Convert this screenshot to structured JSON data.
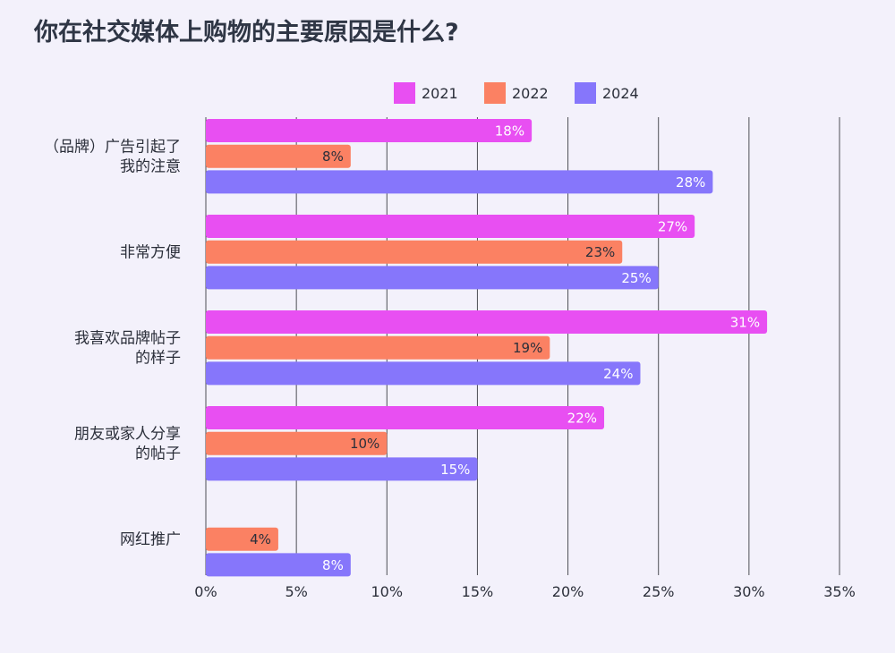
{
  "chart_data": {
    "type": "bar",
    "orientation": "horizontal",
    "title": "你在社交媒体上购物的主要原因是什么?",
    "categories": [
      [
        "（品牌）广告引起了",
        "我的注意"
      ],
      [
        "非常方便"
      ],
      [
        "我喜欢品牌帖子",
        "的样子"
      ],
      [
        "朋友或家人分享",
        "的帖子"
      ],
      [
        "网红推广"
      ]
    ],
    "series": [
      {
        "name": "2021",
        "color": "#e84ff2",
        "label_color": "#ffffff",
        "values": [
          18,
          27,
          31,
          22,
          null
        ]
      },
      {
        "name": "2022",
        "color": "#fb8163",
        "label_color": "#2b2f3a",
        "values": [
          8,
          23,
          19,
          10,
          4
        ]
      },
      {
        "name": "2024",
        "color": "#8676fb",
        "label_color": "#ffffff",
        "values": [
          28,
          25,
          24,
          15,
          8
        ]
      }
    ],
    "value_suffix": "%",
    "xlim": [
      0,
      35
    ],
    "xticks": [
      0,
      5,
      10,
      15,
      20,
      25,
      30,
      35
    ],
    "xtick_labels": [
      "0%",
      "5%",
      "10%",
      "15%",
      "20%",
      "25%",
      "30%",
      "35%"
    ],
    "grid": true,
    "legend": "top"
  }
}
